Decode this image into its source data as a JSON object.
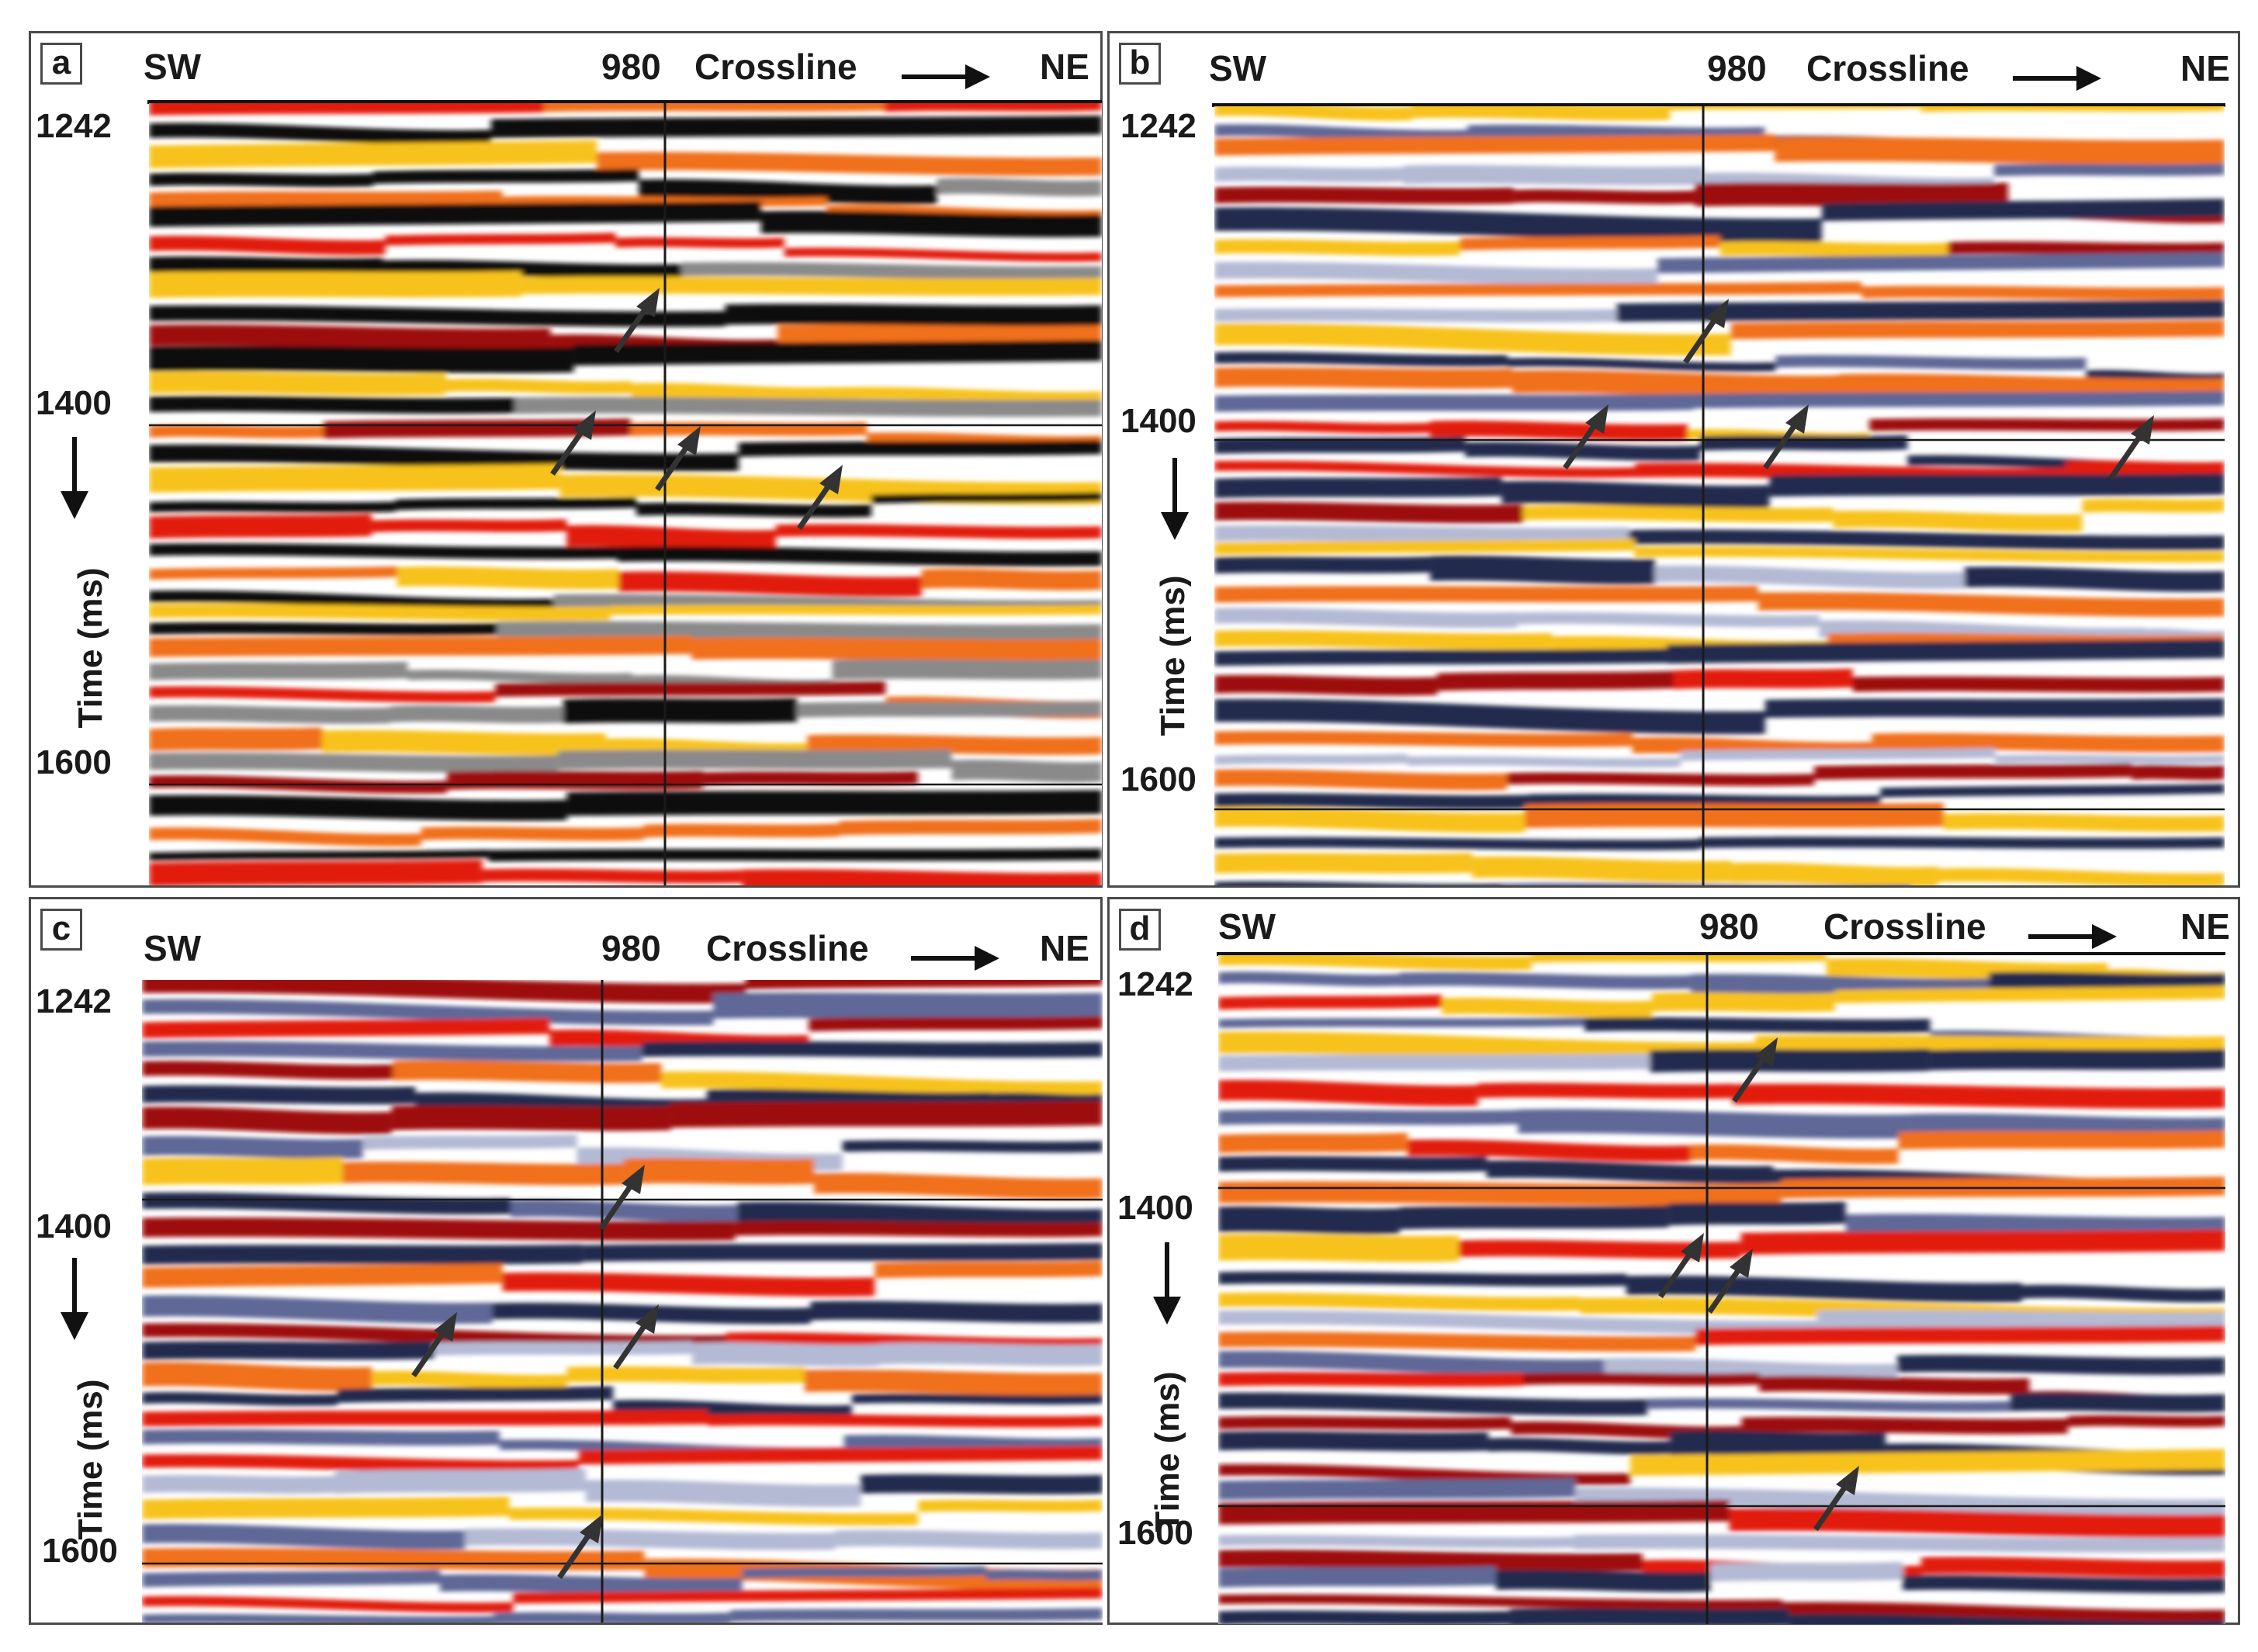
{
  "shared": {
    "sw": "SW",
    "ne": "NE",
    "crossline_number": "980",
    "crossline_label": "Crossline",
    "tick_top": "1242",
    "tick_mid": "1400",
    "tick_bottom": "1600",
    "axis_label": "Time (ms)"
  },
  "panels": [
    {
      "letter": "a",
      "palette": "black-white-red",
      "arrow_count": 4
    },
    {
      "letter": "b",
      "palette": "blue-white-red",
      "arrow_count": 4
    },
    {
      "letter": "c",
      "palette": "blue-white-red",
      "arrow_count": 4
    },
    {
      "letter": "d",
      "palette": "blue-white-red",
      "arrow_count": 4
    }
  ],
  "colors": {
    "black": "#0d0d0d",
    "gray": "#8a8a8a",
    "white": "#ffffff",
    "yellow": "#f7c21c",
    "orange": "#f0701c",
    "red": "#e21a0e",
    "darkred": "#9e1008",
    "navy": "#202a4e",
    "blue": "#5e6796",
    "lightblue": "#b4bad4",
    "arrow": "#333333"
  }
}
